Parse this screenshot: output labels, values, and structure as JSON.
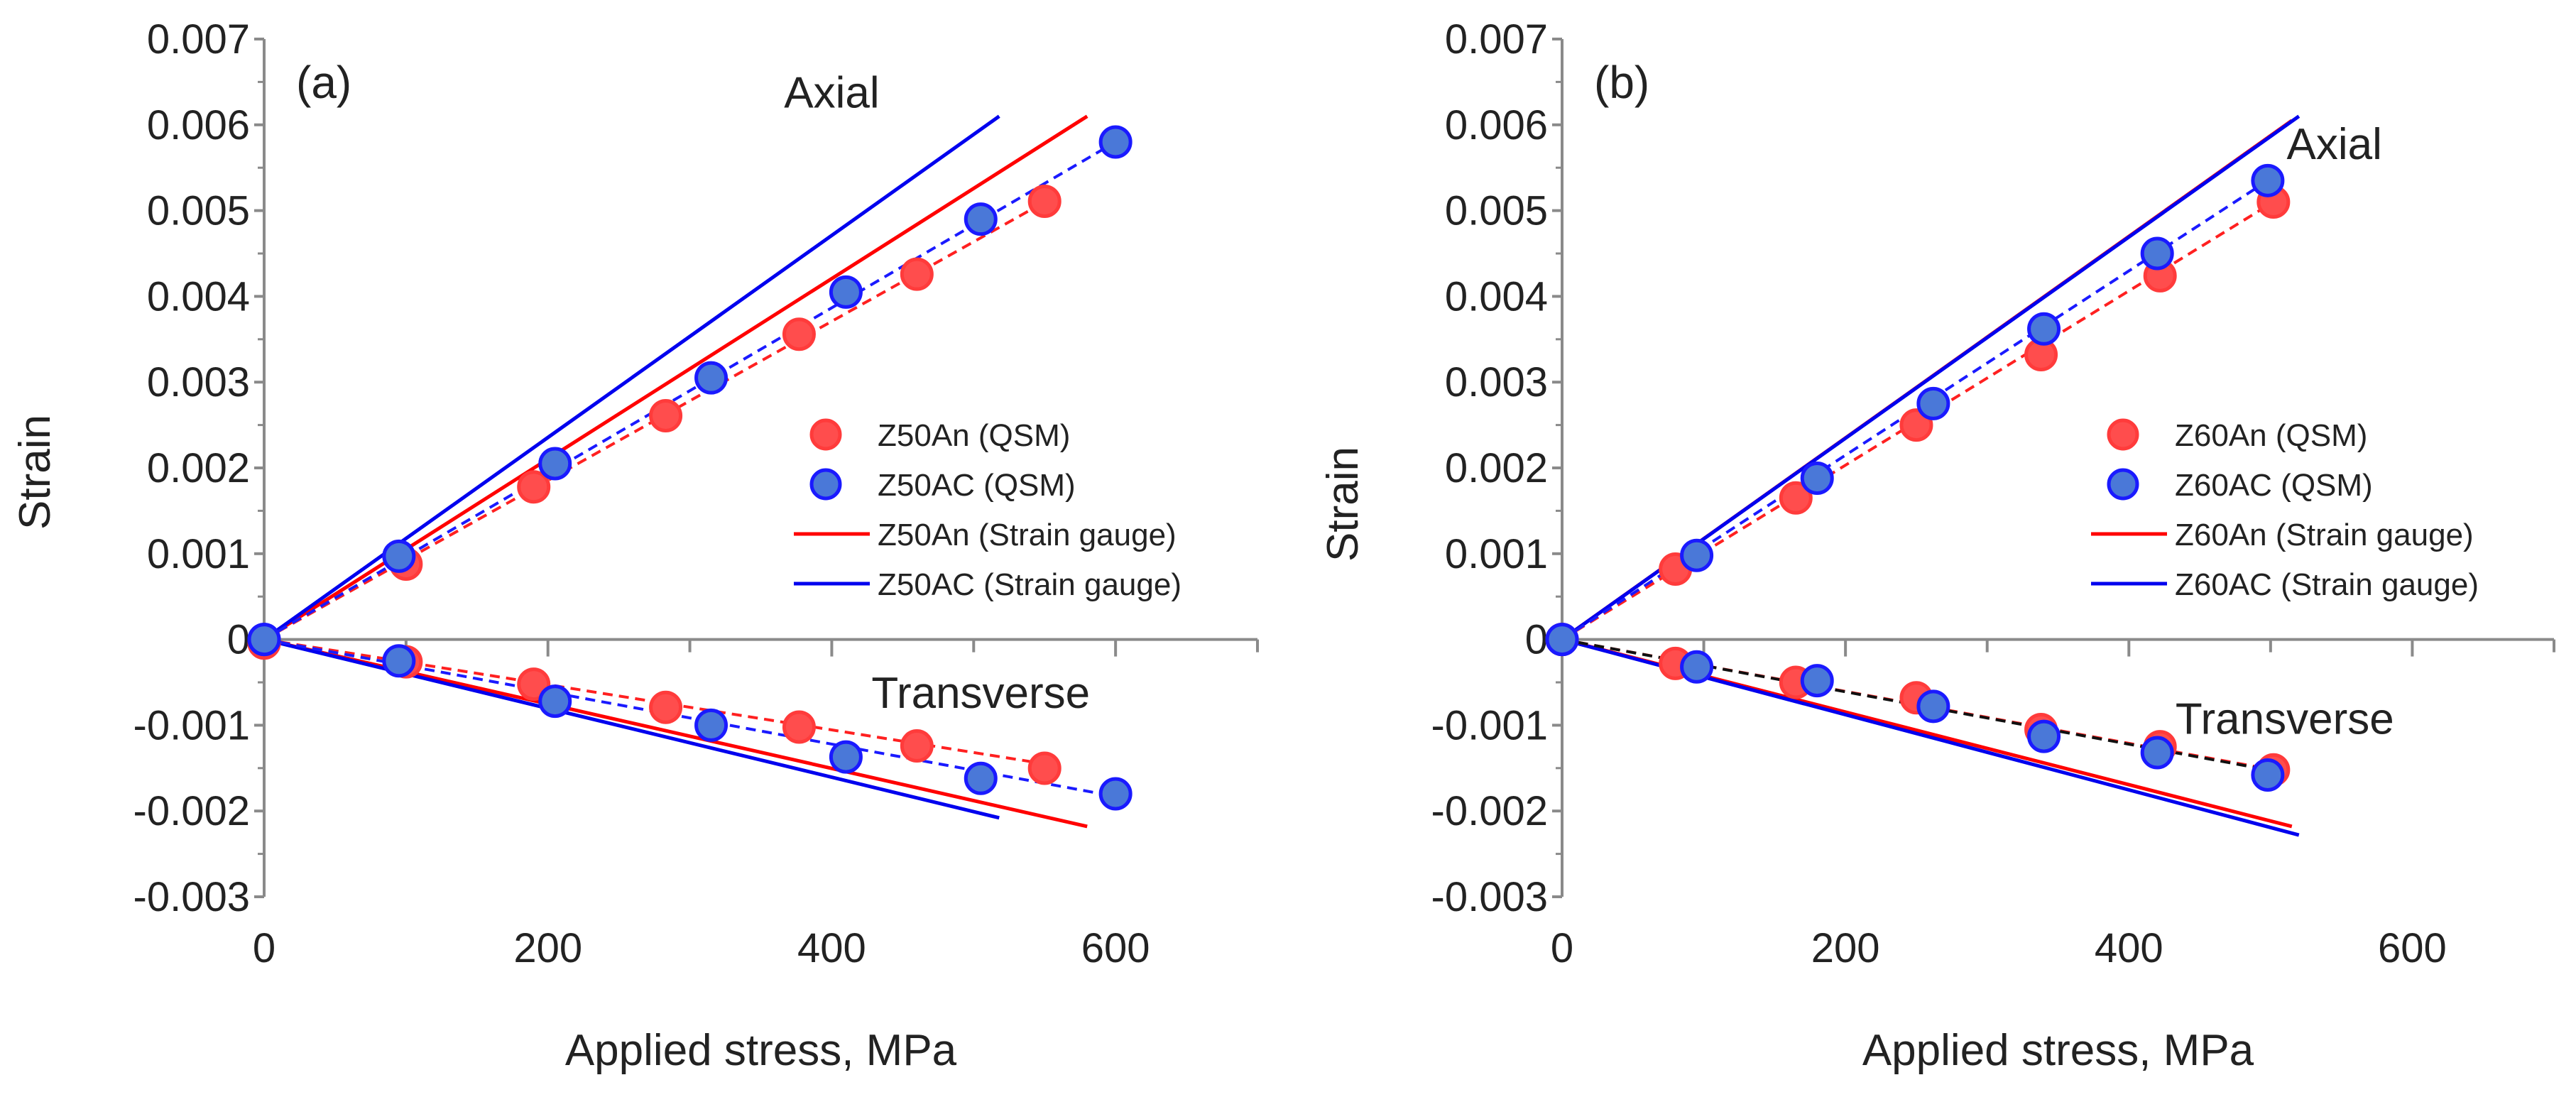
{
  "chart_data": [
    {
      "type": "scatter",
      "panel_label": "(a)",
      "xlabel": "Applied stress, MPa",
      "ylabel": "Strain",
      "xlim": [
        0,
        700
      ],
      "ylim": [
        -0.003,
        0.007
      ],
      "xticks": [
        {
          "v": 0,
          "label": "0"
        },
        {
          "v": 200,
          "label": "200"
        },
        {
          "v": 400,
          "label": "400"
        },
        {
          "v": 600,
          "label": "600"
        }
      ],
      "yticks": [
        {
          "v": 0.007,
          "label": "0.007"
        },
        {
          "v": 0.006,
          "label": "0.006"
        },
        {
          "v": 0.005,
          "label": "0.005"
        },
        {
          "v": 0.004,
          "label": "0.004"
        },
        {
          "v": 0.003,
          "label": "0.003"
        },
        {
          "v": 0.002,
          "label": "0.002"
        },
        {
          "v": 0.001,
          "label": "0.001"
        },
        {
          "v": 0,
          "label": "0"
        },
        {
          "v": -0.001,
          "label": "-0.001"
        },
        {
          "v": -0.002,
          "label": "-0.002"
        },
        {
          "v": -0.003,
          "label": "-0.003"
        }
      ],
      "annotations": [
        {
          "text": "Axial",
          "x": 400,
          "y": 0.0062
        },
        {
          "text": "Transverse",
          "x": 505,
          "y": -0.0008
        }
      ],
      "scatter_series": [
        {
          "name": "Z50An (QSM)",
          "color": "#ff4d4d",
          "edge": "#ff3b3b",
          "offset": [
            0,
            5
          ],
          "axial": [
            [
              0,
              0
            ],
            [
              100,
              0.00092
            ],
            [
              190,
              0.00182
            ],
            [
              283,
              0.00265
            ],
            [
              377,
              0.0036
            ],
            [
              460,
              0.0043
            ],
            [
              550,
              0.00515
            ]
          ],
          "transverse": [
            [
              0,
              0
            ],
            [
              100,
              -0.00022
            ],
            [
              190,
              -0.00048
            ],
            [
              283,
              -0.00075
            ],
            [
              377,
              -0.00098
            ],
            [
              460,
              -0.0012
            ],
            [
              550,
              -0.00146
            ]
          ]
        },
        {
          "name": "Z50AC (QSM)",
          "color": "#4a78d8",
          "edge": "#1a1aff",
          "offset": [
            0,
            0
          ],
          "axial": [
            [
              0,
              0
            ],
            [
              95,
              0.00097
            ],
            [
              205,
              0.00205
            ],
            [
              315,
              0.00305
            ],
            [
              410,
              0.00405
            ],
            [
              505,
              0.0049
            ],
            [
              600,
              0.0058
            ]
          ],
          "transverse": [
            [
              0,
              0
            ],
            [
              95,
              -0.00025
            ],
            [
              205,
              -0.00072
            ],
            [
              315,
              -0.001
            ],
            [
              410,
              -0.00137
            ],
            [
              505,
              -0.00162
            ],
            [
              600,
              -0.0018
            ]
          ]
        }
      ],
      "fit_lines": [
        {
          "color": "#ff2020",
          "from": [
            0,
            0
          ],
          "to": [
            550,
            0.0051
          ]
        },
        {
          "color": "#1a1aff",
          "from": [
            0,
            0
          ],
          "to": [
            600,
            0.0058
          ]
        },
        {
          "color": "#ff2020",
          "from": [
            0,
            0
          ],
          "to": [
            550,
            -0.00145
          ]
        },
        {
          "color": "#1a1aff",
          "from": [
            0,
            0
          ],
          "to": [
            600,
            -0.00183
          ]
        }
      ],
      "gauge_series": [
        {
          "name": "Z50An (Strain gauge)",
          "color": "#ff0000",
          "axial": [
            [
              0,
              0
            ],
            [
              580,
              0.0061
            ]
          ],
          "transverse": [
            [
              0,
              0
            ],
            [
              580,
              -0.00218
            ]
          ]
        },
        {
          "name": "Z50AC (Strain gauge)",
          "color": "#0000ee",
          "axial": [
            [
              0,
              0
            ],
            [
              518,
              0.0061
            ]
          ],
          "transverse": [
            [
              0,
              0
            ],
            [
              518,
              -0.00208
            ]
          ]
        }
      ],
      "legend": {
        "position": "center-right",
        "entries": [
          "Z50An (QSM)",
          "Z50AC (QSM)",
          "Z50An (Strain gauge)",
          "Z50AC (Strain gauge)"
        ]
      }
    },
    {
      "type": "scatter",
      "panel_label": "(b)",
      "xlabel": "Applied stress, MPa",
      "ylabel": "Strain",
      "xlim": [
        0,
        700
      ],
      "ylim": [
        -0.003,
        0.007
      ],
      "xticks": [
        {
          "v": 0,
          "label": "0"
        },
        {
          "v": 200,
          "label": "200"
        },
        {
          "v": 400,
          "label": "400"
        },
        {
          "v": 600,
          "label": "600"
        }
      ],
      "yticks": [
        {
          "v": 0.007,
          "label": "0.007"
        },
        {
          "v": 0.006,
          "label": "0.006"
        },
        {
          "v": 0.005,
          "label": "0.005"
        },
        {
          "v": 0.004,
          "label": "0.004"
        },
        {
          "v": 0.003,
          "label": "0.003"
        },
        {
          "v": 0.002,
          "label": "0.002"
        },
        {
          "v": 0.001,
          "label": "0.001"
        },
        {
          "v": 0,
          "label": "0"
        },
        {
          "v": -0.001,
          "label": "-0.001"
        },
        {
          "v": -0.002,
          "label": "-0.002"
        },
        {
          "v": -0.003,
          "label": "-0.003"
        }
      ],
      "annotations": [
        {
          "text": "Axial",
          "x": 545,
          "y": 0.0056
        },
        {
          "text": "Transverse",
          "x": 510,
          "y": -0.0011
        }
      ],
      "scatter_series": [
        {
          "name": "Z60An (QSM)",
          "color": "#ff4d4d",
          "edge": "#ff3b3b",
          "offset": [
            0,
            0
          ],
          "axial": [
            [
              0,
              0
            ],
            [
              80,
              0.00082
            ],
            [
              165,
              0.00165
            ],
            [
              250,
              0.0025
            ],
            [
              338,
              0.00332
            ],
            [
              422,
              0.00424
            ],
            [
              502,
              0.0051
            ]
          ],
          "transverse": [
            [
              0,
              0
            ],
            [
              80,
              -0.00028
            ],
            [
              165,
              -0.0005
            ],
            [
              250,
              -0.00068
            ],
            [
              338,
              -0.00105
            ],
            [
              422,
              -0.00125
            ],
            [
              502,
              -0.00152
            ]
          ]
        },
        {
          "name": "Z60AC (QSM)",
          "color": "#4a78d8",
          "edge": "#1a1aff",
          "offset": [
            0,
            0
          ],
          "axial": [
            [
              0,
              0
            ],
            [
              95,
              0.00098
            ],
            [
              180,
              0.00188
            ],
            [
              262,
              0.00275
            ],
            [
              340,
              0.00362
            ],
            [
              420,
              0.0045
            ],
            [
              498,
              0.00535
            ]
          ],
          "transverse": [
            [
              0,
              0
            ],
            [
              95,
              -0.00032
            ],
            [
              180,
              -0.00048
            ],
            [
              262,
              -0.00078
            ],
            [
              340,
              -0.00113
            ],
            [
              420,
              -0.00132
            ],
            [
              498,
              -0.00158
            ]
          ]
        }
      ],
      "fit_lines": [
        {
          "color": "#ff2020",
          "from": [
            0,
            0
          ],
          "to": [
            502,
            0.0051
          ]
        },
        {
          "color": "#1a1aff",
          "from": [
            0,
            0
          ],
          "to": [
            498,
            0.00535
          ]
        },
        {
          "color": "#ff2020",
          "from": [
            0,
            0
          ],
          "to": [
            502,
            -0.00152
          ]
        },
        {
          "color": "#111111",
          "from": [
            0,
            0
          ],
          "to": [
            498,
            -0.00152
          ]
        }
      ],
      "gauge_series": [
        {
          "name": "Z60An (Strain gauge)",
          "color": "#ff0000",
          "axial": [
            [
              0,
              0
            ],
            [
              515,
              0.00605
            ]
          ],
          "transverse": [
            [
              0,
              0
            ],
            [
              515,
              -0.00218
            ]
          ]
        },
        {
          "name": "Z60AC (Strain gauge)",
          "color": "#0000ee",
          "axial": [
            [
              0,
              0
            ],
            [
              520,
              0.0061
            ]
          ],
          "transverse": [
            [
              0,
              0
            ],
            [
              520,
              -0.00228
            ]
          ]
        }
      ],
      "legend": {
        "position": "center-right",
        "entries": [
          "Z60An (QSM)",
          "Z60AC (QSM)",
          "Z60An (Strain gauge)",
          "Z60AC (Strain gauge)"
        ]
      }
    }
  ]
}
